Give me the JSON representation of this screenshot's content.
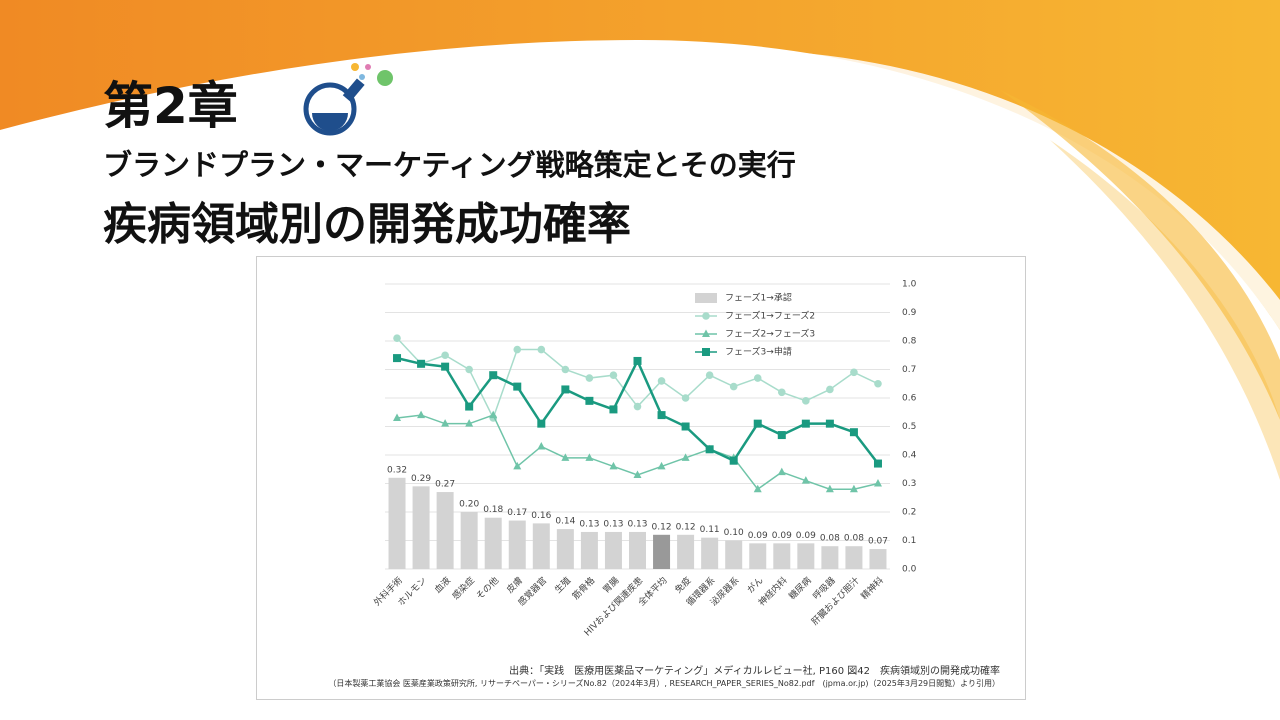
{
  "header": {
    "chapter": "第2章",
    "subtitle": "ブランドプラン・マーケティング戦略策定とその実行",
    "title": "疾病領域別の開発成功確率"
  },
  "chart_data": {
    "type": "bar-line",
    "categories": [
      "外科手術",
      "ホルモン",
      "血液",
      "感染症",
      "その他",
      "皮膚",
      "感覚器官",
      "生殖",
      "筋骨格",
      "胃腸",
      "HIVおよび関連疾患",
      "全体平均",
      "免疫",
      "循環器系",
      "泌尿器系",
      "がん",
      "神経内科",
      "糖尿病",
      "呼吸器",
      "肝臓および胆汁",
      "精神科"
    ],
    "series": [
      {
        "name": "フェーズ1→承認",
        "type": "bar",
        "color": "#d3d3d3",
        "colors": [
          "#d3d3d3",
          "#d3d3d3",
          "#d3d3d3",
          "#d3d3d3",
          "#d3d3d3",
          "#d3d3d3",
          "#d3d3d3",
          "#d3d3d3",
          "#d3d3d3",
          "#d3d3d3",
          "#d3d3d3",
          "#999999",
          "#d3d3d3",
          "#d3d3d3",
          "#d3d3d3",
          "#d3d3d3",
          "#d3d3d3",
          "#d3d3d3",
          "#d3d3d3",
          "#d3d3d3",
          "#d3d3d3"
        ],
        "values": [
          0.32,
          0.29,
          0.27,
          0.2,
          0.18,
          0.17,
          0.16,
          0.14,
          0.13,
          0.13,
          0.13,
          0.12,
          0.12,
          0.11,
          0.1,
          0.09,
          0.09,
          0.09,
          0.08,
          0.08,
          0.07
        ],
        "value_labels": [
          "0.32",
          "0.29",
          "0.27",
          "0.20",
          "0.18",
          "0.17",
          "0.16",
          "0.14",
          "0.13",
          "0.13",
          "0.13",
          "0.12",
          "0.12",
          "0.11",
          "0.10",
          "0.09",
          "0.09",
          "0.09",
          "0.08",
          "0.08",
          "0.07"
        ]
      },
      {
        "name": "フェーズ1→フェーズ2",
        "type": "line",
        "marker": "circle",
        "color": "#a8dccb",
        "values": [
          0.81,
          0.72,
          0.75,
          0.7,
          0.53,
          0.77,
          0.77,
          0.7,
          0.67,
          0.68,
          0.57,
          0.66,
          0.6,
          0.68,
          0.64,
          0.67,
          0.62,
          0.59,
          0.63,
          0.69,
          0.65
        ]
      },
      {
        "name": "フェーズ2→フェーズ3",
        "type": "line",
        "marker": "triangle",
        "color": "#6fc4a8",
        "values": [
          0.53,
          0.54,
          0.51,
          0.51,
          0.54,
          0.36,
          0.43,
          0.39,
          0.39,
          0.36,
          0.33,
          0.36,
          0.39,
          0.42,
          0.39,
          0.28,
          0.34,
          0.31,
          0.28,
          0.28,
          0.3
        ]
      },
      {
        "name": "フェーズ3→申請",
        "type": "line",
        "marker": "square",
        "color": "#1a9a80",
        "values": [
          0.74,
          0.72,
          0.71,
          0.57,
          0.68,
          0.64,
          0.51,
          0.63,
          0.59,
          0.56,
          0.73,
          0.54,
          0.5,
          0.42,
          0.38,
          0.51,
          0.47,
          0.51,
          0.51,
          0.48,
          0.37
        ]
      }
    ],
    "ylim": [
      0,
      1
    ],
    "yticks": [
      {
        "value": 0,
        "label": "0.0"
      },
      0.1,
      0.2,
      0.3,
      0.4,
      0.5,
      0.6,
      0.7,
      0.8,
      0.9,
      {
        "value": 1,
        "label": "1.0"
      }
    ],
    "grid": true,
    "legend": "top-right"
  },
  "source": [
    "出典：「実践　医療用医薬品マーケティング」メディカルレビュー社, P160 図42　疾病領域別の開発成功確率",
    "（日本製薬工業協会 医薬産業政策研究所, リサーチペーパー・シリーズNo.82（2024年3月）, RESEARCH_PAPER_SERIES_No82.pdf　(jpma.or.jp)（2025年3月29日閲覧）より引用）"
  ]
}
